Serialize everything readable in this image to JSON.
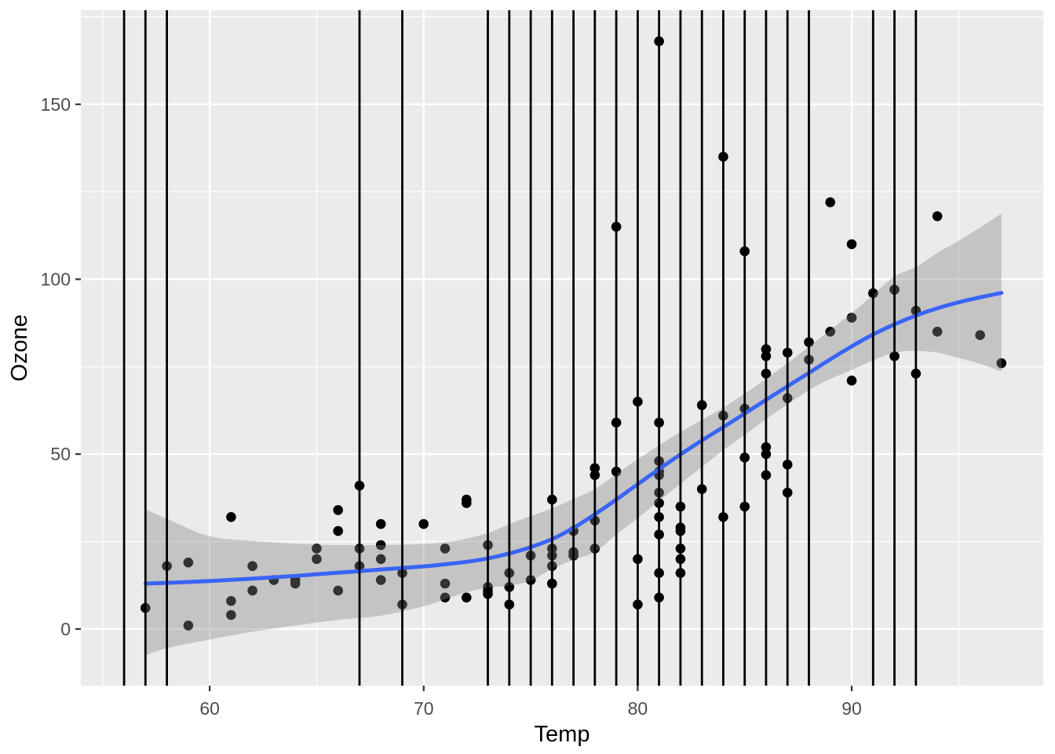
{
  "chart_data": {
    "type": "scatter",
    "title": "",
    "xlabel": "Temp",
    "ylabel": "Ozone",
    "grid": "on",
    "legend": "none",
    "panel_background": "#EBEBEB",
    "x_axis": {
      "domain": [
        53.98,
        98.95
      ],
      "major_ticks": [
        60,
        70,
        80,
        90
      ],
      "major_tick_labels": [
        "60",
        "70",
        "80",
        "90"
      ],
      "minor_ticks": [
        55,
        65,
        75,
        85,
        95
      ]
    },
    "y_axis": {
      "domain": [
        -16.2,
        176.9
      ],
      "major_ticks": [
        0,
        50,
        100,
        150
      ],
      "major_tick_labels": [
        "0",
        "50",
        "100",
        "150"
      ],
      "minor_ticks": [
        25,
        75,
        125,
        175
      ]
    },
    "points_xy_temp_ozone": [
      [
        67,
        41
      ],
      [
        72,
        36
      ],
      [
        74,
        12
      ],
      [
        62,
        18
      ],
      [
        66,
        28
      ],
      [
        65,
        23
      ],
      [
        59,
        19
      ],
      [
        61,
        8
      ],
      [
        74,
        7
      ],
      [
        69,
        16
      ],
      [
        66,
        11
      ],
      [
        68,
        14
      ],
      [
        58,
        18
      ],
      [
        64,
        14
      ],
      [
        66,
        34
      ],
      [
        57,
        6
      ],
      [
        68,
        30
      ],
      [
        62,
        11
      ],
      [
        59,
        1
      ],
      [
        73,
        11
      ],
      [
        61,
        4
      ],
      [
        61,
        32
      ],
      [
        67,
        23
      ],
      [
        81,
        45
      ],
      [
        79,
        115
      ],
      [
        76,
        37
      ],
      [
        82,
        29
      ],
      [
        90,
        71
      ],
      [
        87,
        39
      ],
      [
        82,
        23
      ],
      [
        77,
        21
      ],
      [
        72,
        37
      ],
      [
        65,
        20
      ],
      [
        73,
        12
      ],
      [
        76,
        13
      ],
      [
        84,
        135
      ],
      [
        85,
        49
      ],
      [
        81,
        32
      ],
      [
        83,
        64
      ],
      [
        83,
        40
      ],
      [
        88,
        77
      ],
      [
        92,
        97
      ],
      [
        92,
        97
      ],
      [
        89,
        85
      ],
      [
        73,
        10
      ],
      [
        81,
        27
      ],
      [
        80,
        7
      ],
      [
        81,
        48
      ],
      [
        82,
        35
      ],
      [
        84,
        61
      ],
      [
        87,
        79
      ],
      [
        85,
        63
      ],
      [
        74,
        16
      ],
      [
        86,
        80
      ],
      [
        85,
        108
      ],
      [
        82,
        20
      ],
      [
        86,
        52
      ],
      [
        88,
        82
      ],
      [
        86,
        50
      ],
      [
        83,
        64
      ],
      [
        81,
        59
      ],
      [
        81,
        39
      ],
      [
        81,
        9
      ],
      [
        81,
        16
      ],
      [
        86,
        78
      ],
      [
        85,
        35
      ],
      [
        87,
        66
      ],
      [
        89,
        122
      ],
      [
        90,
        89
      ],
      [
        90,
        110
      ],
      [
        86,
        44
      ],
      [
        82,
        28
      ],
      [
        80,
        65
      ],
      [
        77,
        22
      ],
      [
        79,
        59
      ],
      [
        76,
        23
      ],
      [
        78,
        31
      ],
      [
        78,
        44
      ],
      [
        77,
        21
      ],
      [
        72,
        9
      ],
      [
        79,
        45
      ],
      [
        81,
        168
      ],
      [
        86,
        73
      ],
      [
        97,
        76
      ],
      [
        94,
        118
      ],
      [
        96,
        84
      ],
      [
        94,
        85
      ],
      [
        91,
        96
      ],
      [
        92,
        78
      ],
      [
        93,
        73
      ],
      [
        93,
        91
      ],
      [
        87,
        47
      ],
      [
        84,
        32
      ],
      [
        80,
        20
      ],
      [
        78,
        23
      ],
      [
        75,
        21
      ],
      [
        73,
        24
      ],
      [
        81,
        44
      ],
      [
        76,
        21
      ],
      [
        77,
        28
      ],
      [
        71,
        9
      ],
      [
        71,
        13
      ],
      [
        78,
        46
      ],
      [
        67,
        18
      ],
      [
        76,
        13
      ],
      [
        68,
        24
      ],
      [
        82,
        16
      ],
      [
        64,
        13
      ],
      [
        71,
        23
      ],
      [
        81,
        36
      ],
      [
        69,
        7
      ],
      [
        63,
        14
      ],
      [
        70,
        30
      ],
      [
        75,
        14
      ],
      [
        76,
        18
      ],
      [
        68,
        20
      ]
    ],
    "vlines_x": [
      56,
      57,
      58,
      67,
      69,
      73,
      74,
      75,
      76,
      77,
      78,
      79,
      80,
      81,
      82,
      83,
      84,
      85,
      86,
      87,
      88,
      91,
      92,
      93
    ],
    "smooth_line": [
      [
        57,
        13.0
      ],
      [
        58,
        13.2
      ],
      [
        60,
        13.7
      ],
      [
        62,
        14.4
      ],
      [
        64,
        15.2
      ],
      [
        66,
        16.1
      ],
      [
        68,
        17.0
      ],
      [
        70,
        17.9
      ],
      [
        71,
        18.5
      ],
      [
        72,
        19.2
      ],
      [
        73,
        20.2
      ],
      [
        74,
        21.6
      ],
      [
        75,
        23.4
      ],
      [
        76,
        25.7
      ],
      [
        77,
        28.9
      ],
      [
        78,
        32.8
      ],
      [
        79,
        37.0
      ],
      [
        80,
        41.4
      ],
      [
        81,
        45.7
      ],
      [
        82,
        49.9
      ],
      [
        83,
        53.9
      ],
      [
        84,
        57.7
      ],
      [
        85,
        61.6
      ],
      [
        86,
        65.5
      ],
      [
        87,
        69.4
      ],
      [
        88,
        73.2
      ],
      [
        89,
        77.1
      ],
      [
        90,
        80.8
      ],
      [
        91,
        84.2
      ],
      [
        92,
        87.1
      ],
      [
        93,
        89.6
      ],
      [
        94,
        91.7
      ],
      [
        95,
        93.4
      ],
      [
        96,
        94.8
      ],
      [
        97,
        96.1
      ]
    ],
    "ribbon_lo_hi": [
      [
        57,
        -7.5,
        34.2
      ],
      [
        58,
        -5.5,
        31.5
      ],
      [
        60,
        -3.0,
        26.5
      ],
      [
        62,
        -0.8,
        25.2
      ],
      [
        64,
        1.0,
        24.4
      ],
      [
        66,
        2.6,
        24.0
      ],
      [
        68,
        3.8,
        24.0
      ],
      [
        70,
        6.5,
        24.3
      ],
      [
        71,
        8.5,
        24.8
      ],
      [
        72,
        10.5,
        25.8
      ],
      [
        73,
        11.8,
        27.4
      ],
      [
        74,
        12.4,
        30.0
      ],
      [
        75,
        13.8,
        32.3
      ],
      [
        76,
        17.2,
        34.5
      ],
      [
        77,
        19.8,
        37.2
      ],
      [
        78,
        22.0,
        40.0
      ],
      [
        79,
        27.0,
        44.3
      ],
      [
        80,
        31.7,
        48.5
      ],
      [
        81,
        36.6,
        52.5
      ],
      [
        82,
        41.5,
        56.3
      ],
      [
        83,
        46.3,
        59.8
      ],
      [
        84,
        51.1,
        63.3
      ],
      [
        85,
        55.5,
        67.3
      ],
      [
        86,
        60.0,
        71.5
      ],
      [
        87,
        64.2,
        76.0
      ],
      [
        88,
        68.3,
        80.7
      ],
      [
        89,
        71.5,
        85.5
      ],
      [
        90,
        74.0,
        90.3
      ],
      [
        91,
        76.8,
        95.5
      ],
      [
        92,
        79.0,
        100.8
      ],
      [
        93,
        79.5,
        103.5
      ],
      [
        94,
        79.0,
        107.5
      ],
      [
        95,
        77.5,
        111.0
      ],
      [
        96,
        75.8,
        114.8
      ],
      [
        97,
        73.6,
        118.8
      ]
    ],
    "colors": {
      "panel_bg": "#EBEBEB",
      "grid": "#FFFFFF",
      "point": "#000000",
      "smooth_line": "#3964F5",
      "ribbon": "rgba(135,135,135,0.38)",
      "vline": "#000000",
      "tick_label": "#4D4D4D",
      "axis_title": "#000000",
      "tick_mark": "#333333"
    }
  }
}
